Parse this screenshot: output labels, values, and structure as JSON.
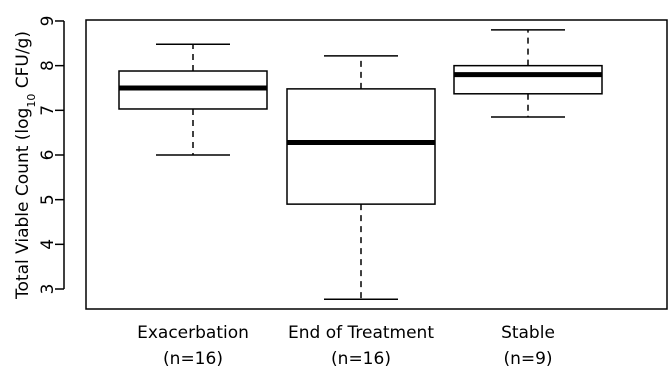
{
  "chart_data": {
    "type": "box",
    "ylabel": {
      "before": "Total Viable Count (log",
      "sub": "10",
      "after": " CFU/g)"
    },
    "ylim": [
      2.5,
      9.0
    ],
    "yticks": [
      3,
      4,
      5,
      6,
      7,
      8,
      9
    ],
    "grid": false,
    "categories": [
      {
        "label": "Exacerbation",
        "n": "(n=16)"
      },
      {
        "label": "End of Treatment",
        "n": "(n=16)"
      },
      {
        "label": "Stable",
        "n": "(n=9)"
      }
    ],
    "boxes": [
      {
        "whisker_low": 6.0,
        "q1": 7.03,
        "median": 7.5,
        "q3": 7.88,
        "whisker_high": 8.48
      },
      {
        "whisker_low": 2.77,
        "q1": 4.9,
        "median": 6.28,
        "q3": 7.48,
        "whisker_high": 8.22
      },
      {
        "whisker_low": 6.85,
        "q1": 7.37,
        "median": 7.8,
        "q3": 8.0,
        "whisker_high": 8.8
      }
    ]
  }
}
